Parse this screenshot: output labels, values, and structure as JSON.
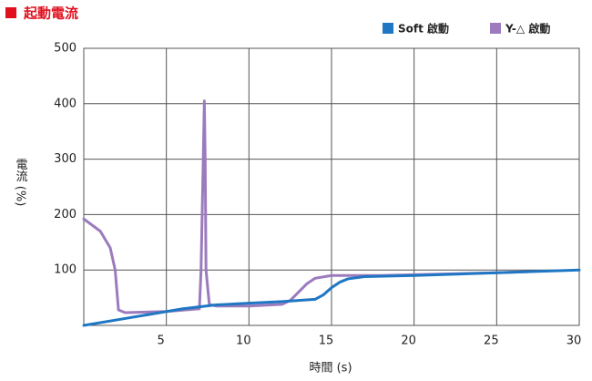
{
  "chart_data": {
    "type": "line",
    "title": "起動電流",
    "xlabel": "時間 (s)",
    "ylabel": "電流 (%)",
    "xlim": [
      0,
      30
    ],
    "xticks": [
      5,
      10,
      15,
      20,
      25,
      30
    ],
    "ylim": [
      0,
      500
    ],
    "yticks": [
      100,
      200,
      300,
      400,
      500
    ],
    "grid": true,
    "legend": "top-right",
    "series": [
      {
        "name": "Soft 啟動",
        "color": "#1f77c4",
        "x": [
          0,
          2,
          4,
          6,
          8,
          10,
          12,
          14,
          14.5,
          15,
          15.5,
          16,
          17,
          20,
          25,
          30
        ],
        "values": [
          0,
          10,
          20,
          30,
          37,
          40,
          43,
          47,
          55,
          68,
          78,
          84,
          88,
          90,
          95,
          100
        ]
      },
      {
        "name": "Y-△ 啟動",
        "color": "#9b7bbd",
        "x": [
          0,
          1,
          1.6,
          1.9,
          2.1,
          2.5,
          5,
          7,
          7.1,
          7.2,
          7.3,
          7.35,
          7.4,
          7.6,
          8,
          10,
          12,
          12.5,
          13,
          13.5,
          14,
          15,
          18,
          25,
          27
        ],
        "values": [
          192,
          170,
          140,
          100,
          28,
          23,
          25,
          30,
          100,
          250,
          405,
          300,
          100,
          38,
          35,
          35,
          38,
          45,
          60,
          75,
          85,
          90,
          90,
          95,
          97
        ]
      }
    ]
  }
}
